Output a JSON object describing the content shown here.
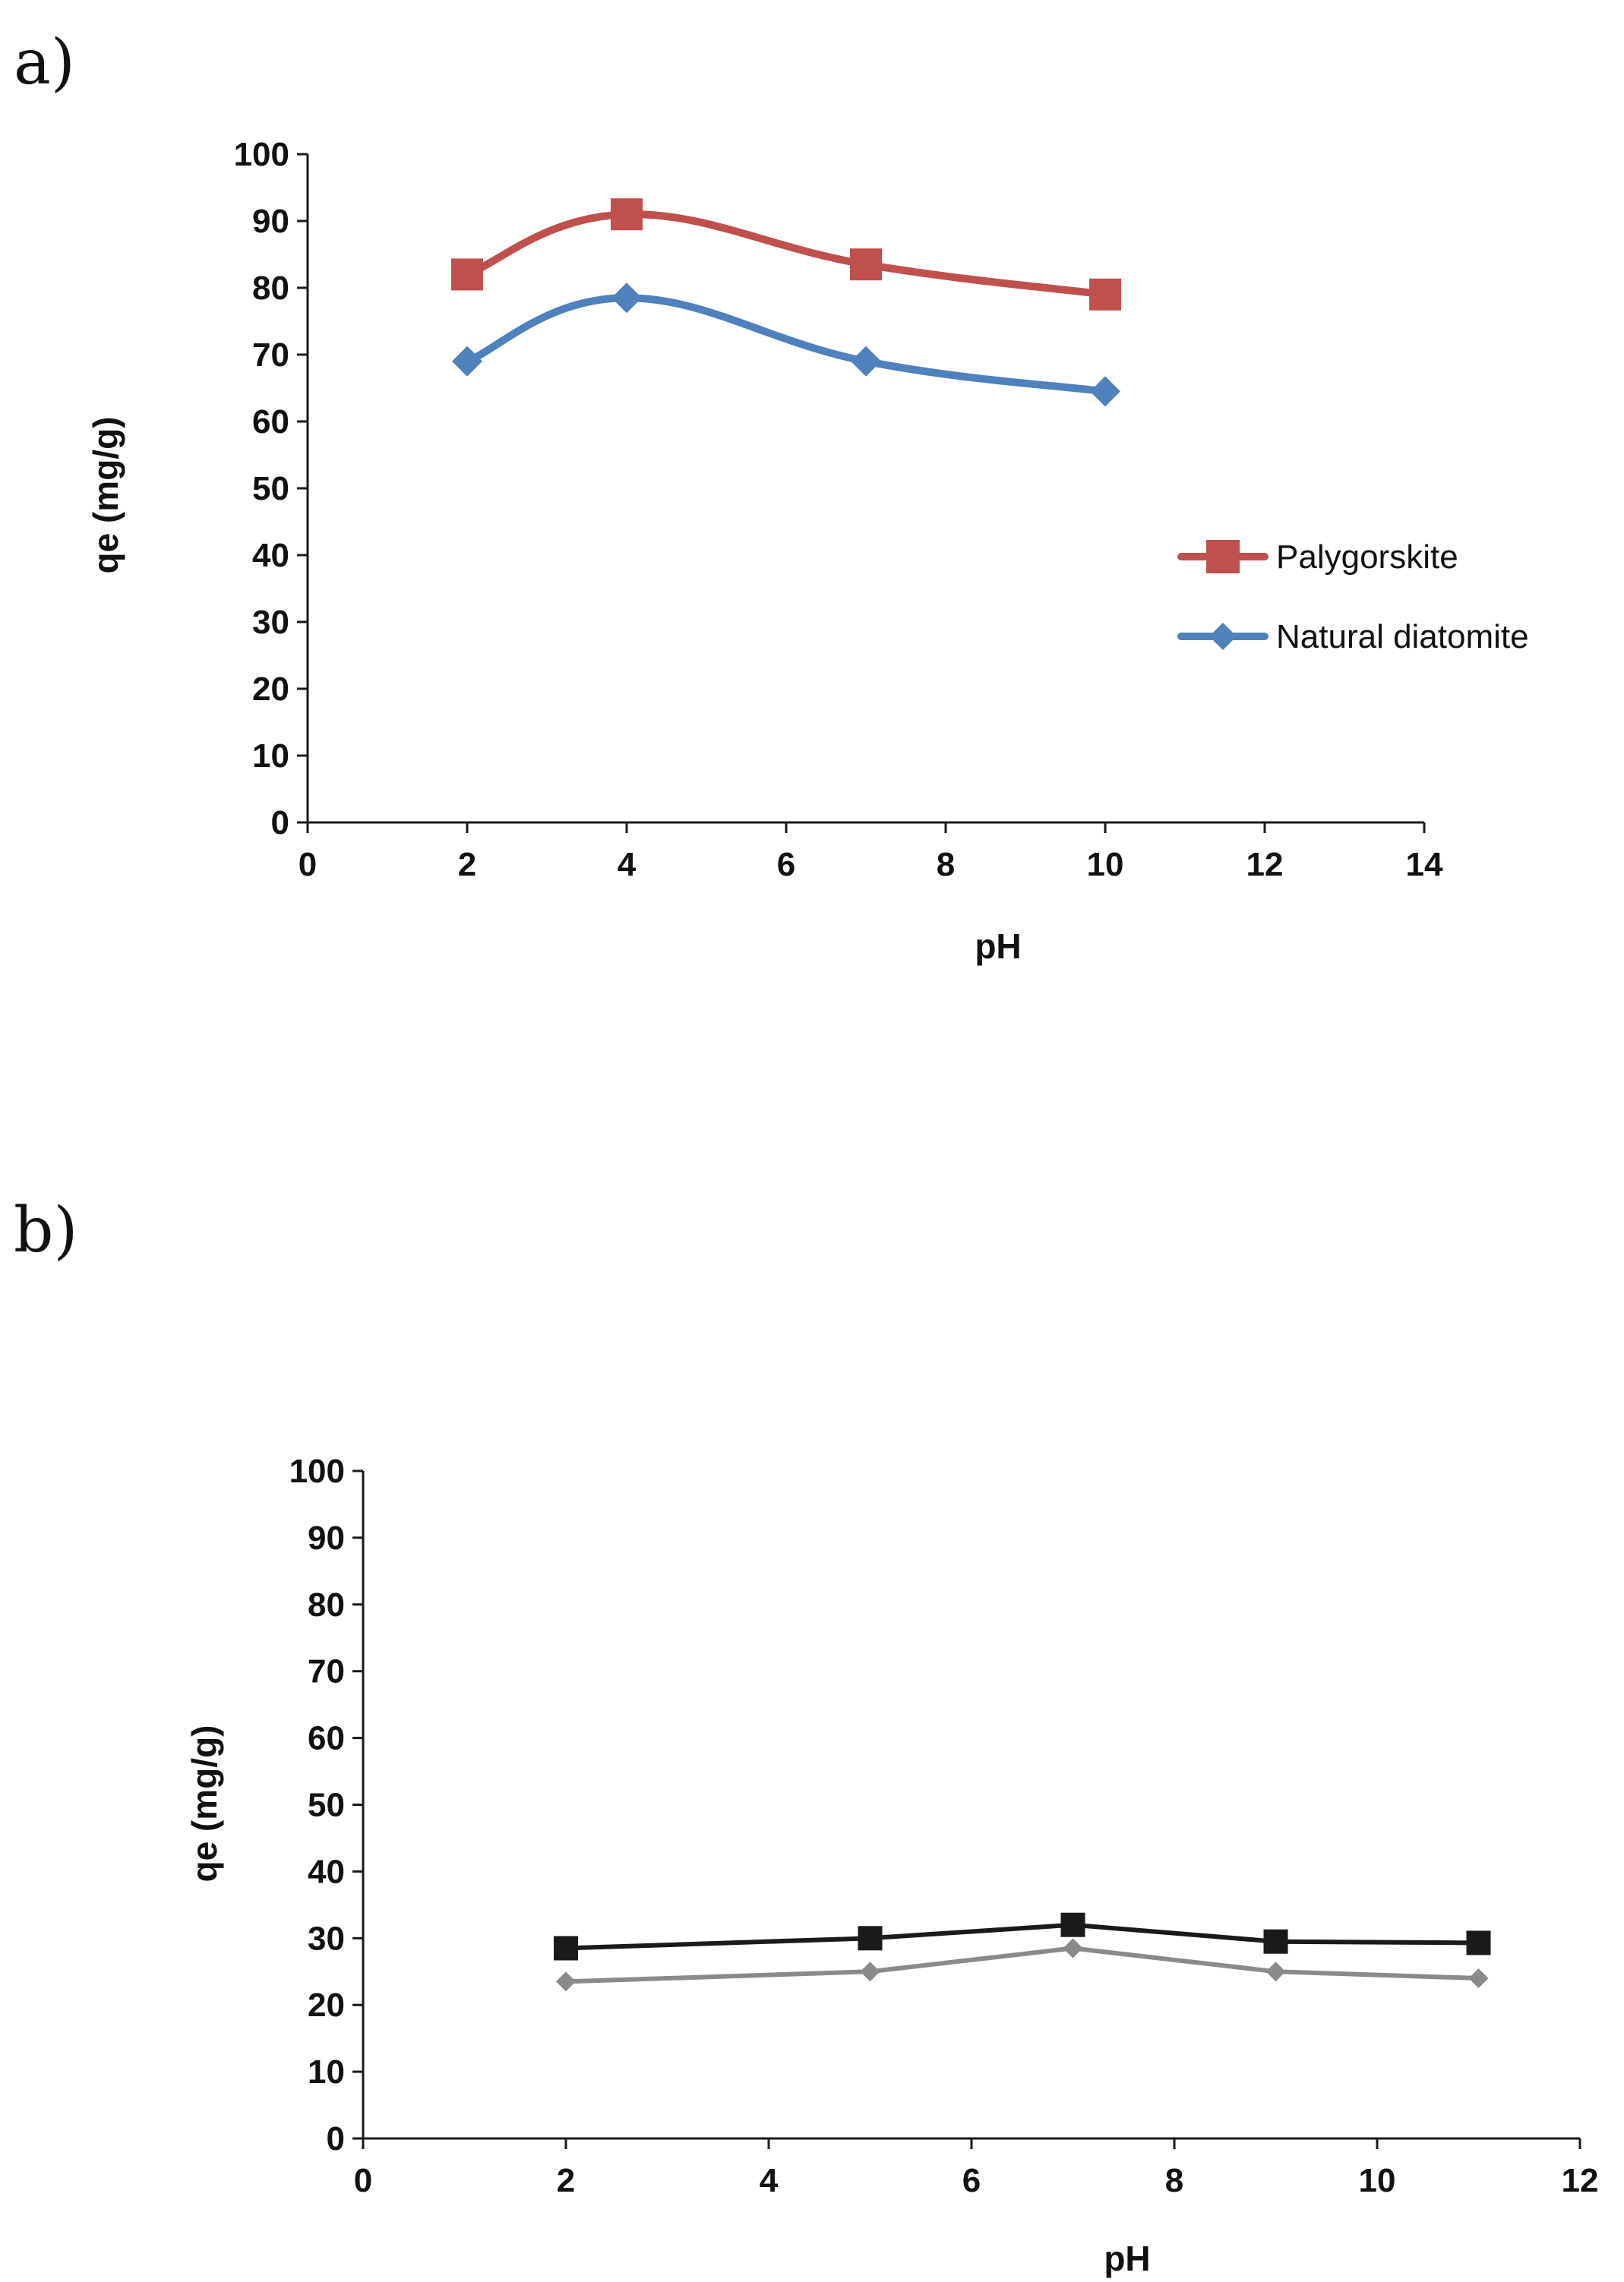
{
  "chart_data": [
    {
      "panel_label": "a)",
      "type": "line",
      "title": "",
      "xlabel": "pH",
      "ylabel": "qe (mg/g)",
      "xlim": [
        0,
        14
      ],
      "ylim": [
        0,
        100
      ],
      "xticks": [
        "0",
        "2",
        "4",
        "6",
        "8",
        "10",
        "12",
        "14"
      ],
      "yticks": [
        "0",
        "10",
        "20",
        "30",
        "40",
        "50",
        "60",
        "70",
        "80",
        "90",
        "100"
      ],
      "grid": false,
      "legend_position": "right",
      "series": [
        {
          "name": "Palygorskite",
          "color": "#c0504d",
          "marker": "square",
          "x": [
            2,
            4,
            7,
            10
          ],
          "values": [
            82,
            91,
            83.5,
            79
          ]
        },
        {
          "name": "Natural diatomite",
          "color": "#4f81bd",
          "marker": "diamond",
          "x": [
            2,
            4,
            7,
            10
          ],
          "values": [
            69,
            78.5,
            69,
            64.5
          ]
        }
      ]
    },
    {
      "panel_label": "b)",
      "type": "line",
      "title": "",
      "xlabel": "pH",
      "ylabel": "qe (mg/g)",
      "xlim": [
        0,
        12
      ],
      "ylim": [
        0,
        100
      ],
      "xticks": [
        "0",
        "2",
        "4",
        "6",
        "8",
        "10",
        "12"
      ],
      "yticks": [
        "0",
        "10",
        "20",
        "30",
        "40",
        "50",
        "60",
        "70",
        "80",
        "90",
        "100"
      ],
      "grid": false,
      "legend_position": "none",
      "series": [
        {
          "name": "",
          "color": "#1a1a1a",
          "marker": "square",
          "x": [
            2,
            5,
            7,
            9,
            11
          ],
          "values": [
            28.5,
            30,
            32,
            29.5,
            29.3
          ]
        },
        {
          "name": "",
          "color": "#8a8a8a",
          "marker": "diamond",
          "x": [
            2,
            5,
            7,
            9,
            11
          ],
          "values": [
            23.5,
            25,
            28.5,
            25,
            24
          ]
        }
      ]
    }
  ]
}
